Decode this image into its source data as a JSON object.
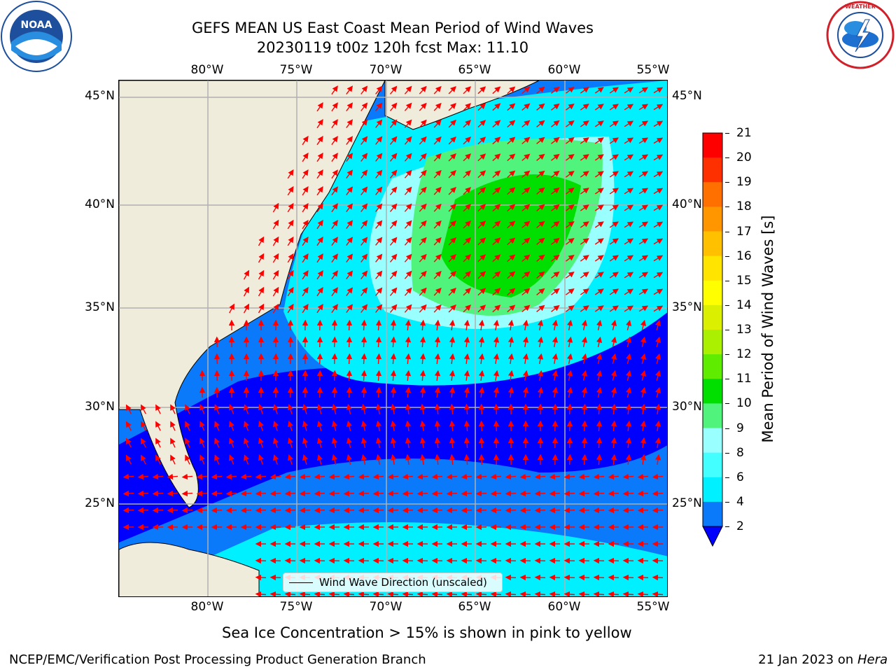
{
  "title": {
    "line1": "GEFS MEAN US East Coast Mean Period of Wind Waves",
    "line2": "20230119 t00z 120h fcst   Max: 11.10"
  },
  "logos": {
    "left": {
      "icon": "noaa-logo",
      "text": "NOAA"
    },
    "right": {
      "icon": "nws-logo",
      "text": "NATIONAL WEATHER SERVICE"
    }
  },
  "map": {
    "projection": "Mercator",
    "lon_range": [
      -85,
      -54.3
    ],
    "lat_range": [
      20.3,
      46
    ],
    "lon_labels": [
      "80°W",
      "75°W",
      "70°W",
      "65°W",
      "60°W",
      "55°W"
    ],
    "lat_labels": [
      "45°N",
      "40°N",
      "35°N",
      "30°N",
      "25°N"
    ],
    "gridlines": true,
    "land_color": "#efecdc",
    "vector_color": "#ff0000",
    "legend_label": "Wind Wave Direction (unscaled)"
  },
  "colorbar": {
    "title": "Mean Period of Wind Waves [s]",
    "labels": [
      "2",
      "4",
      "6",
      "8",
      "9",
      "10",
      "11",
      "12",
      "13",
      "14",
      "15",
      "16",
      "17",
      "18",
      "19",
      "20",
      "21"
    ],
    "colors": [
      "#0000ff",
      "#0a7afb",
      "#00f0ff",
      "#44ffff",
      "#99ffff",
      "#50f37c",
      "#00df00",
      "#60ec00",
      "#aaf000",
      "#daf000",
      "#ffff00",
      "#ffe400",
      "#ffc000",
      "#ff9600",
      "#ff7000",
      "#ff3000",
      "#ff0000"
    ],
    "extend_below": true
  },
  "notes": {
    "sea_ice": "Sea Ice Concentration > 15% is shown in pink to yellow"
  },
  "footer": {
    "left": "NCEP/EMC/Verification Post Processing Product Generation Branch",
    "right_date": "21 Jan 2023 on ",
    "right_host": "Hera"
  }
}
